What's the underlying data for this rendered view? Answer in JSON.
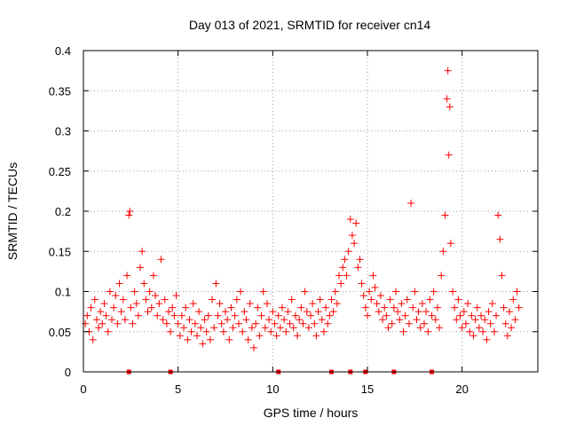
{
  "chart_data": {
    "type": "scatter",
    "title": "Day 013 of 2021, SRMTID for receiver cn14",
    "xlabel": "GPS time / hours",
    "ylabel": "SRMTID / TECUs",
    "xlim": [
      0,
      24
    ],
    "ylim": [
      0,
      0.4
    ],
    "grid": true,
    "x_ticks": [
      0,
      5,
      10,
      15,
      20
    ],
    "x_tick_labels": [
      "0",
      "5",
      "10",
      "15",
      "20"
    ],
    "y_ticks": [
      0,
      0.05,
      0.1,
      0.15,
      0.2,
      0.25,
      0.3,
      0.35,
      0.4
    ],
    "y_tick_labels": [
      "0",
      "0.05",
      "0.1",
      "0.15",
      "0.2",
      "0.25",
      "0.3",
      "0.35",
      "0.4"
    ],
    "marker": "plus",
    "color": "#ff0000",
    "series": [
      {
        "name": "SRMTID",
        "points": [
          [
            0.1,
            0.06
          ],
          [
            0.2,
            0.07
          ],
          [
            0.3,
            0.05
          ],
          [
            0.4,
            0.08
          ],
          [
            0.5,
            0.04
          ],
          [
            0.6,
            0.09
          ],
          [
            0.7,
            0.065
          ],
          [
            0.8,
            0.055
          ],
          [
            0.9,
            0.075
          ],
          [
            1.0,
            0.06
          ],
          [
            1.1,
            0.085
          ],
          [
            1.2,
            0.07
          ],
          [
            1.3,
            0.05
          ],
          [
            1.4,
            0.1
          ],
          [
            1.5,
            0.065
          ],
          [
            1.6,
            0.08
          ],
          [
            1.7,
            0.095
          ],
          [
            1.8,
            0.06
          ],
          [
            1.9,
            0.11
          ],
          [
            2.0,
            0.075
          ],
          [
            2.1,
            0.09
          ],
          [
            2.2,
            0.065
          ],
          [
            2.3,
            0.12
          ],
          [
            2.4,
            0.195
          ],
          [
            2.45,
            0.2
          ],
          [
            2.5,
            0.08
          ],
          [
            2.6,
            0.06
          ],
          [
            2.7,
            0.1
          ],
          [
            2.8,
            0.085
          ],
          [
            2.9,
            0.07
          ],
          [
            3.0,
            0.13
          ],
          [
            3.1,
            0.15
          ],
          [
            3.2,
            0.11
          ],
          [
            3.3,
            0.09
          ],
          [
            3.4,
            0.075
          ],
          [
            3.5,
            0.1
          ],
          [
            3.6,
            0.08
          ],
          [
            3.7,
            0.12
          ],
          [
            3.8,
            0.095
          ],
          [
            3.9,
            0.07
          ],
          [
            4.0,
            0.085
          ],
          [
            4.1,
            0.14
          ],
          [
            4.2,
            0.065
          ],
          [
            4.3,
            0.09
          ],
          [
            4.4,
            0.06
          ],
          [
            4.5,
            0.075
          ],
          [
            4.6,
            0.05
          ],
          [
            4.7,
            0.08
          ],
          [
            4.8,
            0.07
          ],
          [
            4.9,
            0.095
          ],
          [
            5.0,
            0.06
          ],
          [
            5.1,
            0.045
          ],
          [
            5.2,
            0.07
          ],
          [
            5.3,
            0.055
          ],
          [
            5.4,
            0.08
          ],
          [
            5.5,
            0.04
          ],
          [
            5.6,
            0.065
          ],
          [
            5.7,
            0.05
          ],
          [
            5.8,
            0.085
          ],
          [
            5.9,
            0.06
          ],
          [
            6.0,
            0.045
          ],
          [
            6.1,
            0.075
          ],
          [
            6.2,
            0.055
          ],
          [
            6.3,
            0.035
          ],
          [
            6.4,
            0.065
          ],
          [
            6.5,
            0.05
          ],
          [
            6.6,
            0.07
          ],
          [
            6.7,
            0.04
          ],
          [
            6.8,
            0.09
          ],
          [
            6.9,
            0.055
          ],
          [
            7.0,
            0.11
          ],
          [
            7.1,
            0.07
          ],
          [
            7.2,
            0.085
          ],
          [
            7.3,
            0.06
          ],
          [
            7.4,
            0.05
          ],
          [
            7.5,
            0.075
          ],
          [
            7.6,
            0.065
          ],
          [
            7.7,
            0.04
          ],
          [
            7.8,
            0.08
          ],
          [
            7.9,
            0.055
          ],
          [
            8.0,
            0.07
          ],
          [
            8.1,
            0.09
          ],
          [
            8.2,
            0.06
          ],
          [
            8.3,
            0.1
          ],
          [
            8.4,
            0.05
          ],
          [
            8.5,
            0.075
          ],
          [
            8.6,
            0.065
          ],
          [
            8.7,
            0.04
          ],
          [
            8.8,
            0.085
          ],
          [
            8.9,
            0.055
          ],
          [
            9.0,
            0.03
          ],
          [
            9.1,
            0.06
          ],
          [
            9.2,
            0.08
          ],
          [
            9.3,
            0.045
          ],
          [
            9.4,
            0.07
          ],
          [
            9.5,
            0.1
          ],
          [
            9.6,
            0.055
          ],
          [
            9.7,
            0.085
          ],
          [
            9.8,
            0.065
          ],
          [
            9.9,
            0.05
          ],
          [
            10.0,
            0.075
          ],
          [
            10.1,
            0.06
          ],
          [
            10.2,
            0.045
          ],
          [
            10.3,
            0.07
          ],
          [
            10.4,
            0.055
          ],
          [
            10.5,
            0.08
          ],
          [
            10.6,
            0.065
          ],
          [
            10.7,
            0.05
          ],
          [
            10.8,
            0.075
          ],
          [
            10.9,
            0.06
          ],
          [
            11.0,
            0.09
          ],
          [
            11.1,
            0.055
          ],
          [
            11.2,
            0.07
          ],
          [
            11.3,
            0.045
          ],
          [
            11.4,
            0.065
          ],
          [
            11.5,
            0.08
          ],
          [
            11.6,
            0.06
          ],
          [
            11.7,
            0.1
          ],
          [
            11.8,
            0.075
          ],
          [
            11.9,
            0.055
          ],
          [
            12.0,
            0.07
          ],
          [
            12.1,
            0.085
          ],
          [
            12.2,
            0.06
          ],
          [
            12.3,
            0.045
          ],
          [
            12.4,
            0.075
          ],
          [
            12.5,
            0.09
          ],
          [
            12.6,
            0.065
          ],
          [
            12.7,
            0.05
          ],
          [
            12.8,
            0.08
          ],
          [
            12.9,
            0.06
          ],
          [
            13.0,
            0.07
          ],
          [
            13.1,
            0.09
          ],
          [
            13.2,
            0.075
          ],
          [
            13.3,
            0.1
          ],
          [
            13.4,
            0.085
          ],
          [
            13.5,
            0.12
          ],
          [
            13.6,
            0.11
          ],
          [
            13.7,
            0.13
          ],
          [
            13.8,
            0.14
          ],
          [
            13.9,
            0.12
          ],
          [
            14.0,
            0.15
          ],
          [
            14.1,
            0.19
          ],
          [
            14.2,
            0.17
          ],
          [
            14.3,
            0.16
          ],
          [
            14.4,
            0.185
          ],
          [
            14.5,
            0.13
          ],
          [
            14.6,
            0.14
          ],
          [
            14.7,
            0.11
          ],
          [
            14.8,
            0.095
          ],
          [
            14.9,
            0.08
          ],
          [
            15.0,
            0.07
          ],
          [
            15.1,
            0.1
          ],
          [
            15.2,
            0.09
          ],
          [
            15.3,
            0.12
          ],
          [
            15.4,
            0.105
          ],
          [
            15.5,
            0.085
          ],
          [
            15.6,
            0.075
          ],
          [
            15.7,
            0.095
          ],
          [
            15.8,
            0.065
          ],
          [
            15.9,
            0.08
          ],
          [
            16.0,
            0.07
          ],
          [
            16.1,
            0.055
          ],
          [
            16.2,
            0.09
          ],
          [
            16.3,
            0.06
          ],
          [
            16.4,
            0.08
          ],
          [
            16.5,
            0.1
          ],
          [
            16.6,
            0.075
          ],
          [
            16.7,
            0.065
          ],
          [
            16.8,
            0.085
          ],
          [
            16.9,
            0.05
          ],
          [
            17.0,
            0.07
          ],
          [
            17.1,
            0.09
          ],
          [
            17.2,
            0.06
          ],
          [
            17.3,
            0.21
          ],
          [
            17.4,
            0.08
          ],
          [
            17.5,
            0.1
          ],
          [
            17.6,
            0.065
          ],
          [
            17.7,
            0.075
          ],
          [
            17.8,
            0.055
          ],
          [
            17.9,
            0.085
          ],
          [
            18.0,
            0.06
          ],
          [
            18.1,
            0.075
          ],
          [
            18.2,
            0.05
          ],
          [
            18.3,
            0.09
          ],
          [
            18.4,
            0.07
          ],
          [
            18.5,
            0.1
          ],
          [
            18.6,
            0.065
          ],
          [
            18.7,
            0.08
          ],
          [
            18.8,
            0.055
          ],
          [
            18.9,
            0.12
          ],
          [
            19.0,
            0.15
          ],
          [
            19.1,
            0.195
          ],
          [
            19.2,
            0.34
          ],
          [
            19.25,
            0.375
          ],
          [
            19.3,
            0.27
          ],
          [
            19.35,
            0.33
          ],
          [
            19.4,
            0.16
          ],
          [
            19.5,
            0.1
          ],
          [
            19.6,
            0.08
          ],
          [
            19.7,
            0.065
          ],
          [
            19.8,
            0.09
          ],
          [
            19.9,
            0.07
          ],
          [
            20.0,
            0.055
          ],
          [
            20.1,
            0.075
          ],
          [
            20.2,
            0.06
          ],
          [
            20.3,
            0.085
          ],
          [
            20.4,
            0.05
          ],
          [
            20.5,
            0.07
          ],
          [
            20.6,
            0.045
          ],
          [
            20.7,
            0.065
          ],
          [
            20.8,
            0.08
          ],
          [
            20.9,
            0.055
          ],
          [
            21.0,
            0.07
          ],
          [
            21.1,
            0.05
          ],
          [
            21.2,
            0.065
          ],
          [
            21.3,
            0.04
          ],
          [
            21.4,
            0.075
          ],
          [
            21.5,
            0.06
          ],
          [
            21.6,
            0.085
          ],
          [
            21.7,
            0.05
          ],
          [
            21.8,
            0.07
          ],
          [
            21.9,
            0.195
          ],
          [
            22.0,
            0.165
          ],
          [
            22.1,
            0.12
          ],
          [
            22.2,
            0.08
          ],
          [
            22.3,
            0.06
          ],
          [
            22.4,
            0.045
          ],
          [
            22.5,
            0.075
          ],
          [
            22.6,
            0.055
          ],
          [
            22.7,
            0.09
          ],
          [
            22.8,
            0.065
          ],
          [
            22.9,
            0.1
          ],
          [
            23.0,
            0.08
          ]
        ]
      }
    ],
    "zero_markers_x": [
      2.4,
      4.6,
      10.3,
      13.1,
      14.1,
      14.9,
      16.4,
      18.4
    ]
  }
}
